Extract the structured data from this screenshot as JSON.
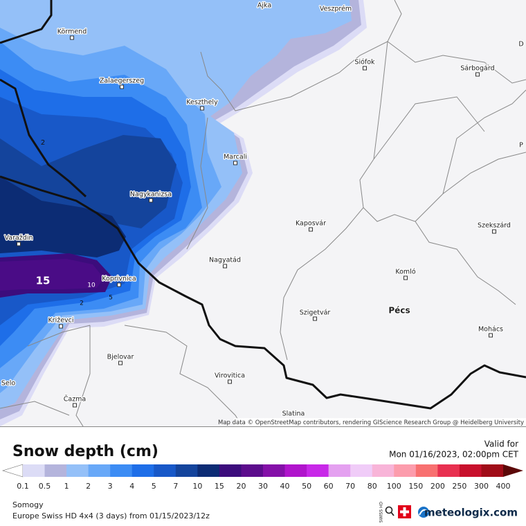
{
  "map": {
    "cities": [
      "Ajka",
      "Veszprém",
      "Körmend",
      "Sárbogárd",
      "Siófok",
      "Zalaegerszeg",
      "Keszthely",
      "Marcali",
      "Nagykanizsa",
      "Kaposvár",
      "Szekszárd",
      "Varaždin",
      "Nagyatád",
      "Koprivnica",
      "Komló",
      "Szigetvár",
      "Pécs",
      "Križevci",
      "Mohács",
      "Bjelovar",
      "Virovitica",
      "Selo",
      "Čazma",
      "Slatina",
      "D",
      "P"
    ],
    "contour_labels": [
      "2",
      "15",
      "10",
      "5",
      "2"
    ],
    "attribution": "Map data © OpenStreetMap contributors, rendering GIScience Research Group @ Heidelberg University"
  },
  "legend": {
    "title": "Snow depth (cm)",
    "ticks": [
      0.1,
      0.5,
      1,
      2,
      3,
      4,
      5,
      7,
      10,
      15,
      20,
      30,
      40,
      50,
      60,
      70,
      80,
      100,
      150,
      200,
      250,
      300,
      400
    ],
    "colors": [
      "#dcdcf6",
      "#b4b4dc",
      "#94c0f8",
      "#68a8f8",
      "#3c8cf4",
      "#1e6ee8",
      "#1858c8",
      "#14449c",
      "#0c2c74",
      "#3c0c7c",
      "#5c0c8c",
      "#8410a8",
      "#b014cc",
      "#c828e8",
      "#e4a0f0",
      "#f0ccf8",
      "#f8b4d8",
      "#fc9cac",
      "#f87070",
      "#e83050",
      "#c8102c",
      "#a00c18"
    ],
    "under_color": "#ffffff",
    "over_color": "#5c0808"
  },
  "valid": {
    "label": "Valid for",
    "time": "Mon 01/16/2023, 02:00pm CET"
  },
  "footer": {
    "region": "Somogy",
    "model": "Europe Swiss HD 4x4 (3 days) from 01/15/2023/12z",
    "badge": "SWISS HD",
    "brand": "meteologix.com"
  }
}
